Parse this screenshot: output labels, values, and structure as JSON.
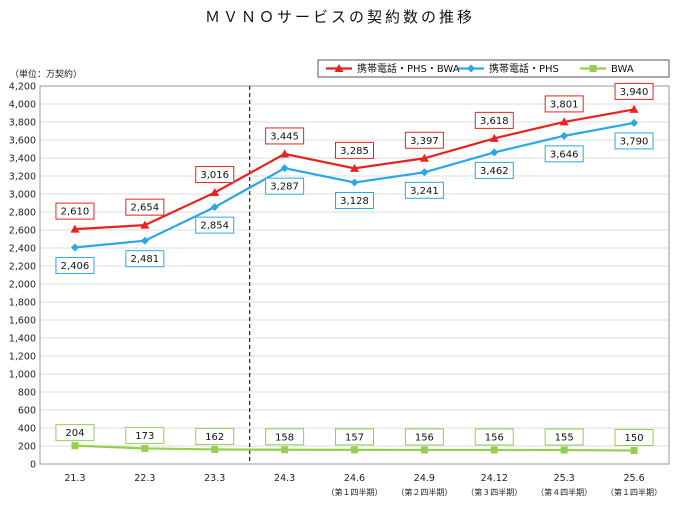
{
  "chart_data": {
    "type": "line",
    "title": "ＭＶＮＯサービスの契約数の推移",
    "ylabel": "（単位：万契約）",
    "ylim": [
      0,
      4200
    ],
    "ytick_step": 200,
    "categories": [
      "21.3",
      "22.3",
      "23.3",
      "24.3",
      "24.6",
      "24.9",
      "24.12",
      "25.3",
      "25.6"
    ],
    "category_sublabels": [
      "",
      "",
      "",
      "",
      "（第１四半期）",
      "（第２四半期）",
      "（第３四半期）",
      "（第４四半期）",
      "（第１四半期）"
    ],
    "divider_between": [
      "23.3",
      "24.3"
    ],
    "legend_position": "top-right",
    "grid": true,
    "series": [
      {
        "name": "携帯電話・PHS・BWA",
        "color": "#e8231d",
        "marker": "triangle",
        "values": [
          2610,
          2654,
          3016,
          3445,
          3285,
          3397,
          3618,
          3801,
          3940
        ]
      },
      {
        "name": "携帯電話・PHS",
        "color": "#2ba8e3",
        "marker": "diamond",
        "values": [
          2406,
          2481,
          2854,
          3287,
          3128,
          3241,
          3462,
          3646,
          3790
        ]
      },
      {
        "name": "BWA",
        "color": "#94cf4f",
        "marker": "square",
        "values": [
          204,
          173,
          162,
          158,
          157,
          156,
          156,
          155,
          150
        ]
      }
    ]
  }
}
